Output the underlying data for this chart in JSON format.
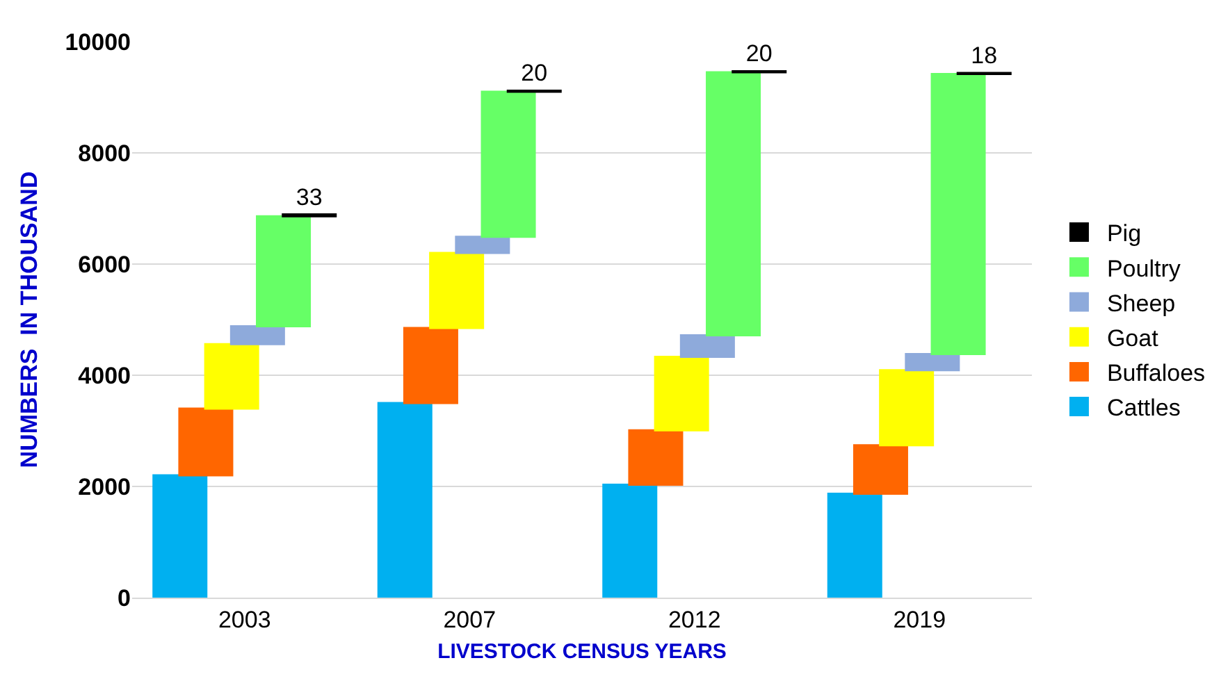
{
  "chart_data": {
    "type": "bar",
    "xlabel": "LIVESTOCK CENSUS YEARS",
    "ylabel": "NUMBERS  IN THOUSAND",
    "categories": [
      "2003",
      "2007",
      "2012",
      "2019"
    ],
    "series": [
      {
        "name": "Cattles",
        "color": "#00b0f0",
        "base": [
          0,
          0,
          0,
          0
        ],
        "values": [
          2200,
          3500,
          2030,
          1870
        ]
      },
      {
        "name": "Buffaloes",
        "color": "#ff6600",
        "base": [
          2200,
          3500,
          2030,
          1870
        ],
        "values": [
          1200,
          1350,
          980,
          870
        ]
      },
      {
        "name": "Goat",
        "color": "#ffff00",
        "base": [
          3400,
          4850,
          3010,
          2740
        ],
        "values": [
          1160,
          1350,
          1320,
          1350
        ]
      },
      {
        "name": "Sheep",
        "color": "#8eaadb",
        "base": [
          4560,
          6200,
          4330,
          4090
        ],
        "values": [
          320,
          290,
          390,
          290
        ]
      },
      {
        "name": "Poultry",
        "color": "#66ff66",
        "base": [
          4880,
          6490,
          4720,
          4380
        ],
        "values": [
          1980,
          2610,
          4730,
          5040
        ]
      },
      {
        "name": "Pig",
        "color": "#000000",
        "base": [
          6860,
          9100,
          9450,
          9420
        ],
        "values": [
          33,
          20,
          20,
          18
        ],
        "value_labels": [
          "33",
          "20",
          "20",
          "18"
        ]
      }
    ],
    "ylim": [
      0,
      10000
    ],
    "yticks": [
      0,
      2000,
      4000,
      6000,
      8000,
      10000
    ],
    "grid": "y",
    "legend": "right"
  }
}
